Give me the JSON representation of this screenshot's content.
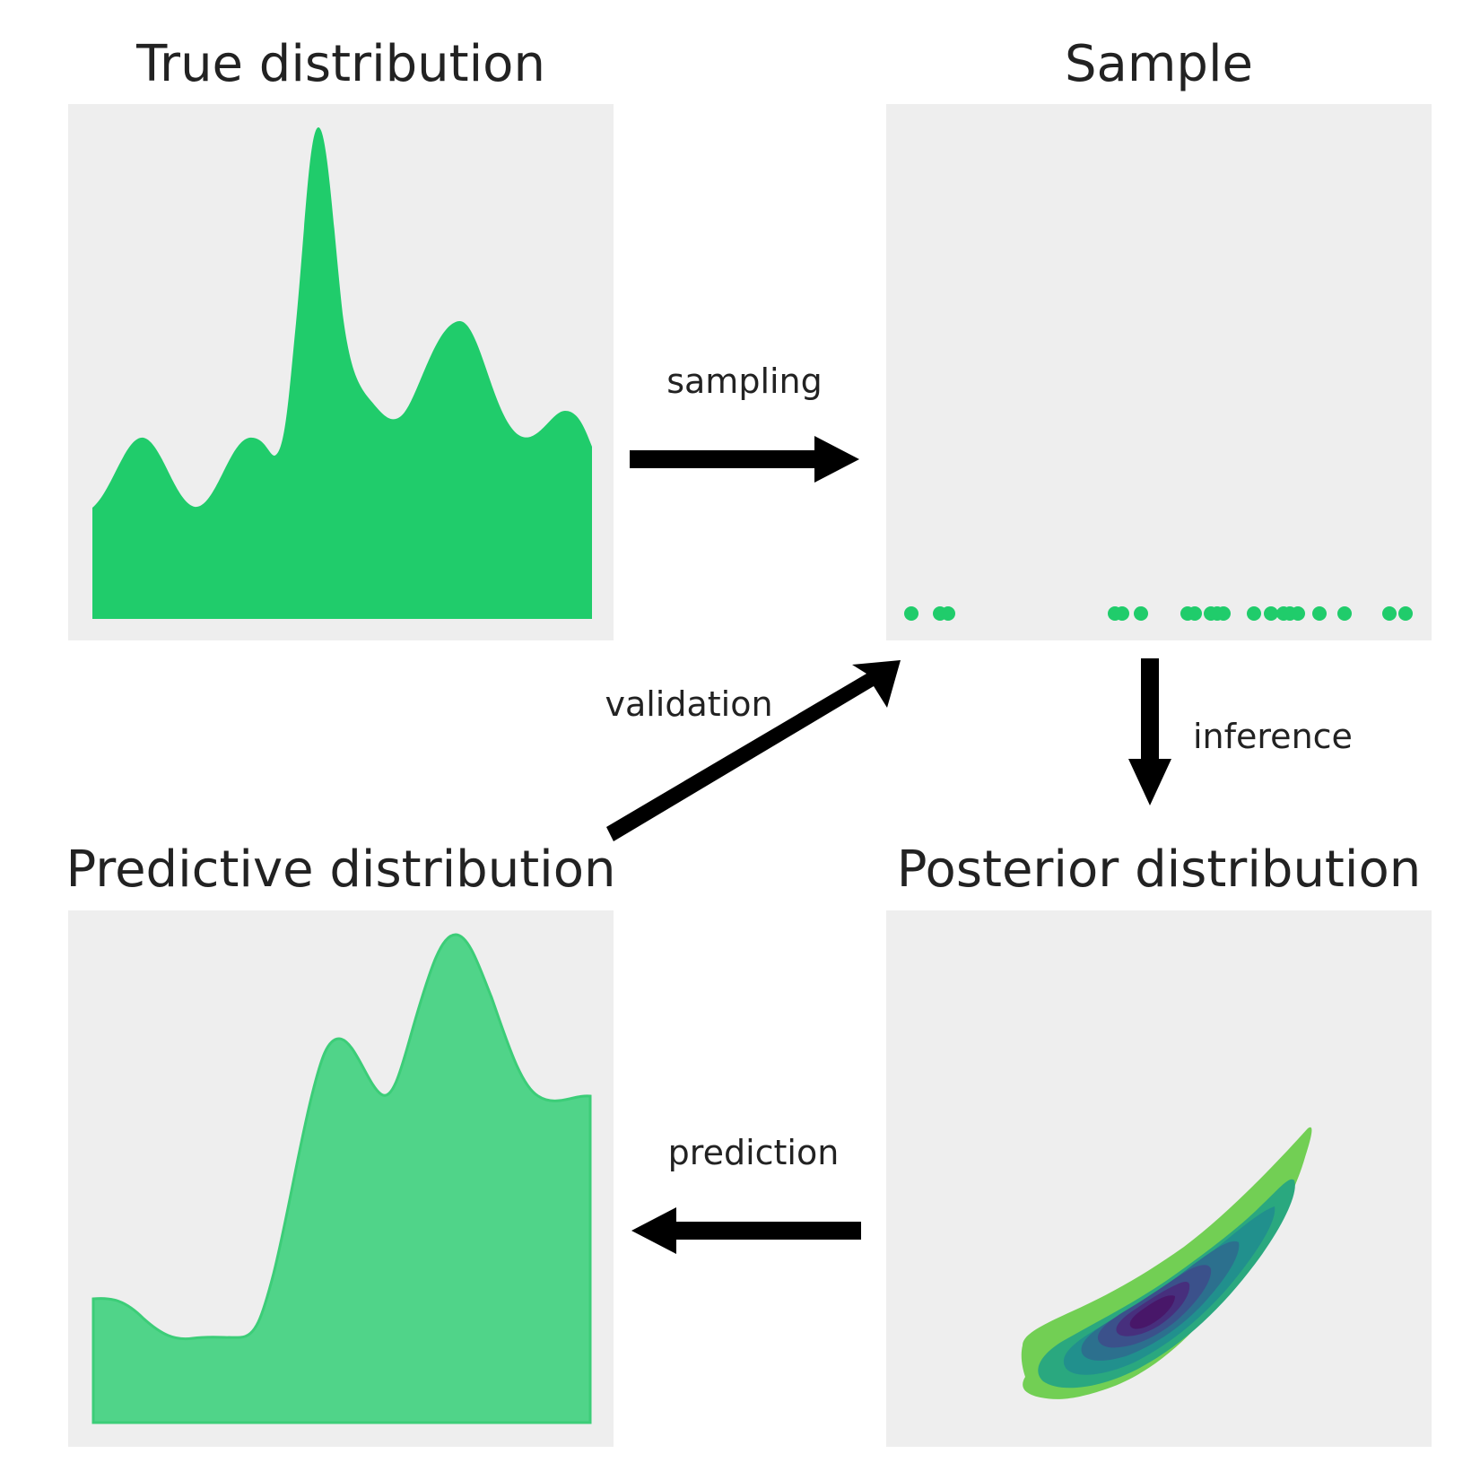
{
  "panels": {
    "true_distribution": {
      "title": "True distribution"
    },
    "sample": {
      "title": "Sample",
      "point_count": 20
    },
    "predictive_distribution": {
      "title": "Predictive distribution"
    },
    "posterior_distribution": {
      "title": "Posterior distribution"
    }
  },
  "arrows": {
    "sampling": {
      "label": "sampling",
      "direction": "right"
    },
    "inference": {
      "label": "inference",
      "direction": "down"
    },
    "prediction": {
      "label": "prediction",
      "direction": "left"
    },
    "validation": {
      "label": "validation",
      "direction": "up-right"
    }
  },
  "colors": {
    "panel_background": "#eeeeee",
    "true_fill": "#20cc6b",
    "predictive_fill": "#50d489",
    "predictive_stroke": "#3ccd78",
    "sample_point": "#20cc6b",
    "arrow": "#000000",
    "posterior_levels": [
      "#72cf54",
      "#2aa87f",
      "#21908d",
      "#2c708e",
      "#3b518b",
      "#472f7d",
      "#481769"
    ]
  }
}
